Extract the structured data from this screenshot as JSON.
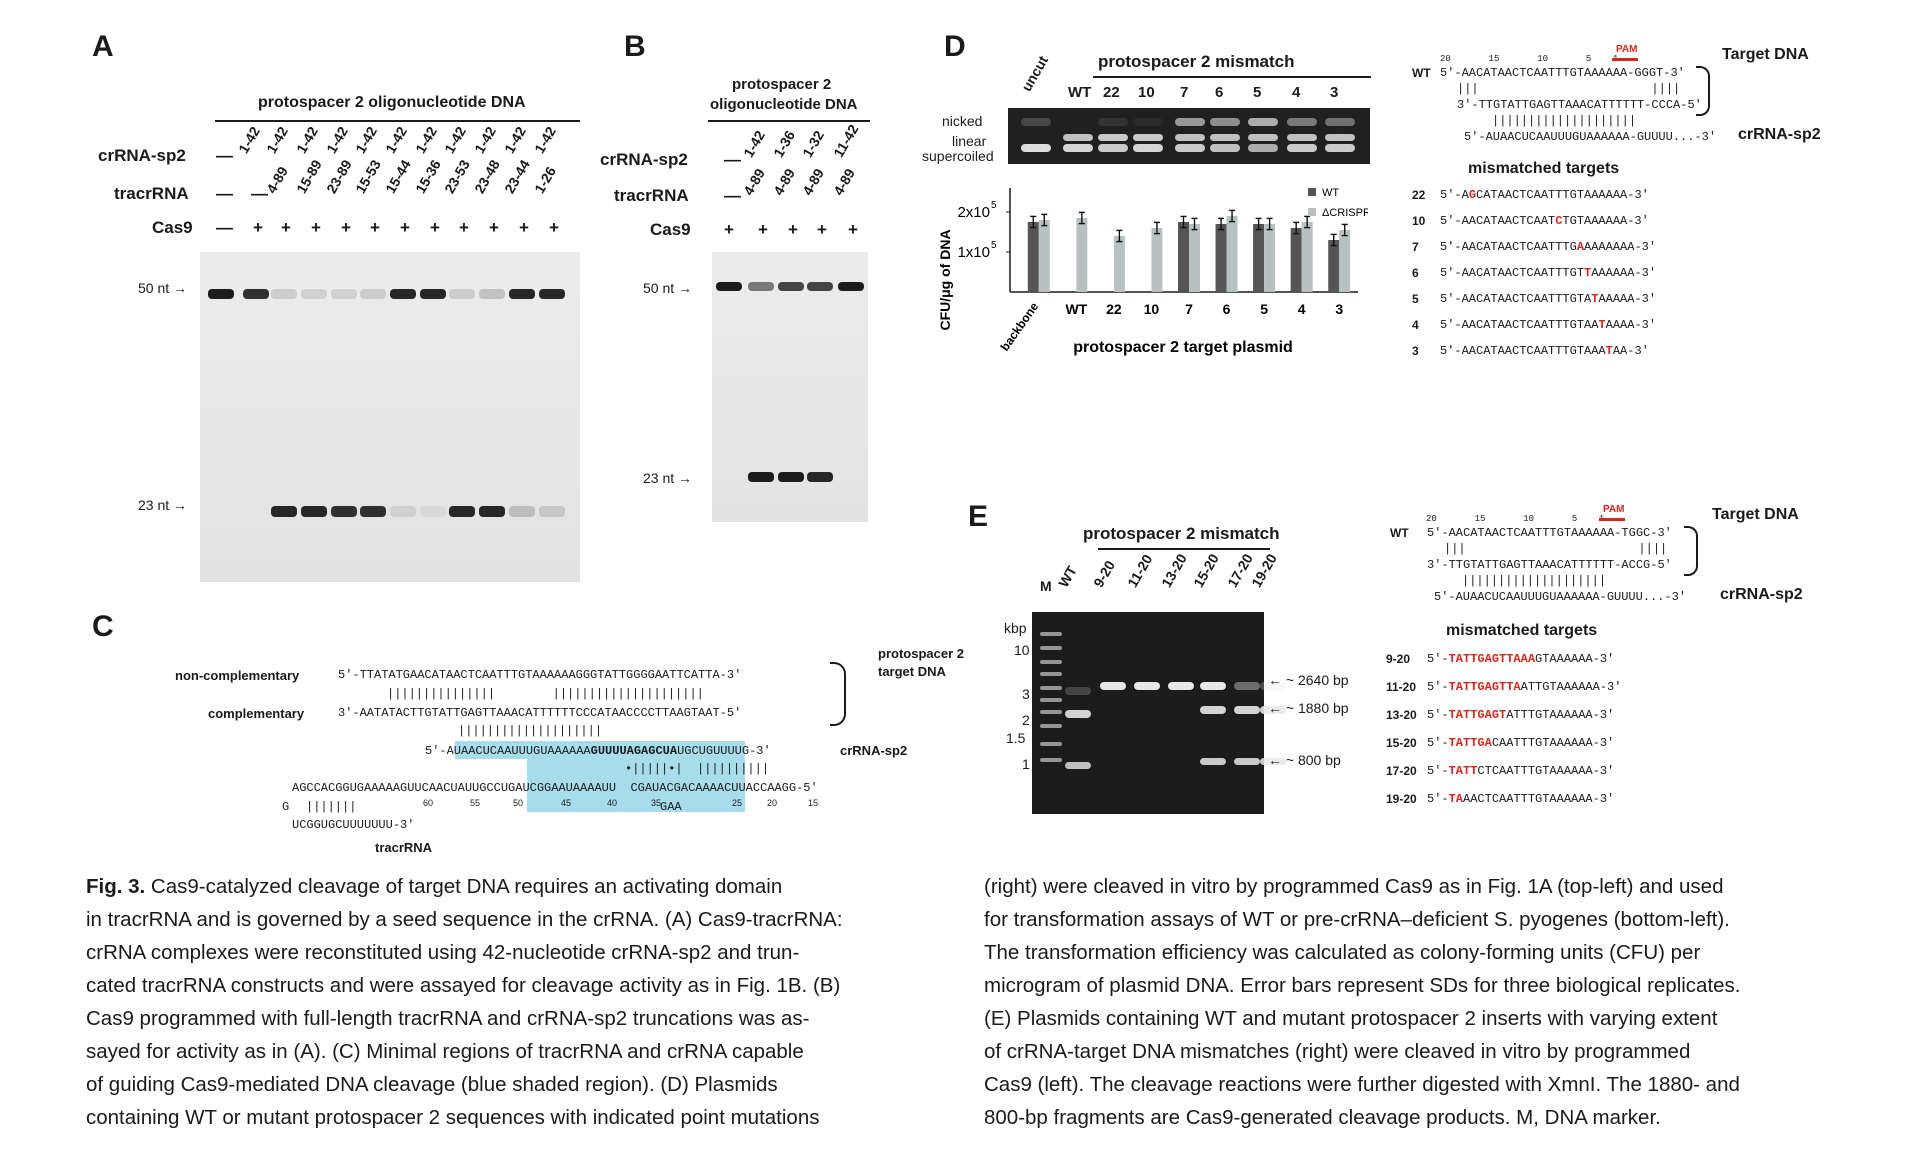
{
  "panelA": {
    "letter": "A",
    "header": "protospacer 2 oligonucleotide DNA",
    "row_crRNA": "crRNA-sp2",
    "row_tracrRNA": "tracrRNA",
    "row_cas9": "Cas9",
    "dash": "—",
    "plus": "+",
    "crRNA_lanes": [
      "1-42",
      "1-42",
      "1-42",
      "1-42",
      "1-42",
      "1-42",
      "1-42",
      "1-42",
      "1-42",
      "1-42",
      "1-42"
    ],
    "tracrRNA_lanes": [
      "4-89",
      "15-89",
      "23-89",
      "15-53",
      "15-44",
      "15-36",
      "23-53",
      "23-48",
      "23-44",
      "1-26"
    ],
    "marker_50": "50 nt →",
    "marker_23": "23 nt →"
  },
  "panelB": {
    "letter": "B",
    "header_line1": "protospacer 2",
    "header_line2": "oligonucleotide DNA",
    "row_crRNA": "crRNA-sp2",
    "row_tracrRNA": "tracrRNA",
    "row_cas9": "Cas9",
    "crRNA_lanes": [
      "1-42",
      "1-36",
      "1-32",
      "11-42"
    ],
    "tracrRNA_lanes": [
      "4-89",
      "4-89",
      "4-89",
      "4-89"
    ],
    "marker_50": "50 nt →",
    "marker_23": "23 nt →"
  },
  "panelC": {
    "letter": "C",
    "noncomp_label": "non-complementary",
    "comp_label": "complementary",
    "noncomp_seq": "5′-TTATATGAACATAACTCAATTTGTAAAAAAGGGTATTGGGGAATTCATTA-3′",
    "comp_seq": "3′-AATATACTTGTATTGAGTTAAACATTTTTTCCCATAACCCCTTAAGTAAT-5′",
    "bars1": "|||||||||||||||        |||||||||||||||||||||",
    "bars2": "||||||||||||||||||||",
    "crRNA_seq_a": "5′-AUAACUCAAUUUGUAAAAAA",
    "crRNA_seq_b": "GUUUUAGAGCUA",
    "crRNA_seq_c": "UGCUGUUUUG-3′",
    "crRNA_label": "crRNA-sp2",
    "pair_marks": "•|||||•|  ||||||||||",
    "tracr_line": "AGCCACGGUGAAAAAGUUCAACUAUUGCCUGAUCGGAAUAAAAUU  CGAUACGACAAAACUUACCAAGG-5′",
    "tracr_g": "G",
    "tracr_bars": "|||||||",
    "tracr_tail": "UCGGUGCUUUUUUU-3′",
    "gaa": "GAA",
    "tick_numbers": [
      "60",
      "55",
      "50",
      "45",
      "40",
      "35",
      "25",
      "20",
      "15"
    ],
    "tracrRNA_label": "tracrRNA",
    "target_label_1": "protospacer 2",
    "target_label_2": "target DNA"
  },
  "panelD": {
    "letter": "D",
    "header": "protospacer 2 mismatch",
    "lanes": [
      "uncut",
      "WT",
      "22",
      "10",
      "7",
      "6",
      "5",
      "4",
      "3"
    ],
    "nicked": "nicked",
    "linear": "linear",
    "supercoiled": "supercoiled",
    "ylabel": "CFU/μg of DNA",
    "ytick_2": "2x10",
    "ytick_1": "1x10",
    "exp": "5",
    "xlabel": "protospacer 2 target plasmid",
    "legend_wt": "WT",
    "legend_dcrispr": "ΔCRISPR",
    "colors": {
      "wt": "#555555",
      "dcrispr": "#b8c1c1"
    },
    "wt_label": "WT",
    "pam": "PAM",
    "pos_numbers": "20       15       10       5    1",
    "target_top": "5′-AACATAACTCAATTTGTAAAAAA-GGGT-3′",
    "bars_a": "|||                        ||||",
    "target_bottom": "3′-TTGTATTGAGTTAAACATTTTTT-CCCA-5′",
    "bars_b": "||||||||||||||||||||",
    "crRNA_line": "5′-AUAACUCAAUUUGUAAAAAA-GUUUU...-3′",
    "target_dna": "Target DNA",
    "crRNA_label": "crRNA-sp2",
    "mismatch_title": "mismatched targets",
    "mismatches": [
      {
        "id": "22",
        "pre": "5′-A",
        "red": "G",
        "post": "CATAACTCAATTTGTAAAAAA-3′"
      },
      {
        "id": "10",
        "pre": "5′-AACATAACTCAAT",
        "red": "C",
        "post": "TGTAAAAAA-3′"
      },
      {
        "id": "7",
        "pre": "5′-AACATAACTCAATTTG",
        "red": "A",
        "post": "AAAAAAA-3′"
      },
      {
        "id": "6",
        "pre": "5′-AACATAACTCAATTTGT",
        "red": "T",
        "post": "AAAAAA-3′"
      },
      {
        "id": "5",
        "pre": "5′-AACATAACTCAATTTGTA",
        "red": "T",
        "post": "AAAAA-3′"
      },
      {
        "id": "4",
        "pre": "5′-AACATAACTCAATTTGTAA",
        "red": "T",
        "post": "AAAA-3′"
      },
      {
        "id": "3",
        "pre": "5′-AACATAACTCAATTTGTAAA",
        "red": "T",
        "post": "AA-3′"
      }
    ]
  },
  "chart_data": {
    "type": "bar",
    "ylabel": "CFU/μg of DNA",
    "xlabel": "protospacer 2 target plasmid",
    "categories": [
      "backbone",
      "WT",
      "22",
      "10",
      "7",
      "6",
      "5",
      "4",
      "3"
    ],
    "series": [
      {
        "name": "WT",
        "values": [
          175000,
          null,
          null,
          null,
          175000,
          170000,
          170000,
          160000,
          130000
        ]
      },
      {
        "name": "ΔCRISPR",
        "values": [
          180000,
          185000,
          140000,
          160000,
          170000,
          190000,
          170000,
          175000,
          155000
        ]
      }
    ],
    "ylim": [
      0,
      250000
    ],
    "legend": "top-right"
  },
  "panelE": {
    "letter": "E",
    "header": "protospacer 2 mismatch",
    "lanes": [
      "M",
      "WT",
      "9-20",
      "11-20",
      "13-20",
      "15-20",
      "17-20",
      "19-20"
    ],
    "kbp": "kbp",
    "kbp_ticks": [
      "10",
      "3",
      "2",
      "1.5",
      "1"
    ],
    "band_2640": "← ~ 2640 bp",
    "band_1880": "← ~ 1880 bp",
    "band_800": "← ~ 800 bp",
    "wt_label": "WT",
    "pam": "PAM",
    "pos_numbers": "20       15       10       5    1",
    "target_top": "5′-AACATAACTCAATTTGTAAAAAA-TGGC-3′",
    "bars_a": "|||                        ||||",
    "target_bottom": "3′-TTGTATTGAGTTAAACATTTTTT-ACCG-5′",
    "bars_b": "||||||||||||||||||||",
    "crRNA_line": "5′-AUAACUCAAUUUGUAAAAAA-GUUUU...-3′",
    "target_dna": "Target DNA",
    "crRNA_label": "crRNA-sp2",
    "mismatch_title": "mismatched targets",
    "mismatches": [
      {
        "id": "9-20",
        "pre": "5′-",
        "red": "TATTGAGTTAAA",
        "post": "GTAAAAAA-3′"
      },
      {
        "id": "11-20",
        "pre": "5′-",
        "red": "TATTGAGTTA",
        "post": "ATTGTAAAAAA-3′"
      },
      {
        "id": "13-20",
        "pre": "5′-",
        "red": "TATTGAGT",
        "post": "ATTTGTAAAAAA-3′"
      },
      {
        "id": "15-20",
        "pre": "5′-",
        "red": "TATTGA",
        "post": "CAATTTGTAAAAAA-3′"
      },
      {
        "id": "17-20",
        "pre": "5′-",
        "red": "TATT",
        "post": "CTCAATTTGTAAAAAA-3′"
      },
      {
        "id": "19-20",
        "pre": "5′-",
        "red": "TA",
        "post": "AACTCAATTTGTAAAAAA-3′"
      }
    ]
  },
  "caption": {
    "fig": "Fig. 3.",
    "left_line1": " Cas9-catalyzed cleavage of target DNA requires an activating domain",
    "left_line2": "in tracrRNA and is governed by a seed sequence in the crRNA. (A) Cas9-tracrRNA:",
    "left_line3": "crRNA complexes were reconstituted using 42-nucleotide crRNA-sp2 and trun-",
    "left_line4": "cated tracrRNA constructs and were assayed for cleavage activity as in Fig. 1B. (B)",
    "left_line5": "Cas9 programmed with full-length tracrRNA and crRNA-sp2 truncations was as-",
    "left_line6": "sayed for activity as in (A). (C) Minimal regions of tracrRNA and crRNA capable",
    "left_line7": "of guiding Cas9-mediated DNA cleavage (blue shaded region). (D) Plasmids",
    "left_line8": "containing WT or mutant protospacer 2 sequences with indicated point mutations",
    "right_line1": "(right) were cleaved in vitro by programmed Cas9 as in Fig. 1A (top-left) and used",
    "right_line2": "for transformation assays of WT or pre-crRNA–deficient S. pyogenes (bottom-left).",
    "right_line3": "The transformation efficiency was calculated as colony-forming units (CFU) per",
    "right_line4": "microgram of plasmid DNA. Error bars represent SDs for three biological replicates.",
    "right_line5": "(E) Plasmids containing WT and mutant protospacer 2 inserts with varying extent",
    "right_line6": "of crRNA-target DNA mismatches (right) were cleaved in vitro by programmed",
    "right_line7": "Cas9 (left). The cleavage reactions were further digested with XmnI. The 1880- and",
    "right_line8": "800-bp fragments are Cas9-generated cleavage products. M, DNA marker."
  }
}
